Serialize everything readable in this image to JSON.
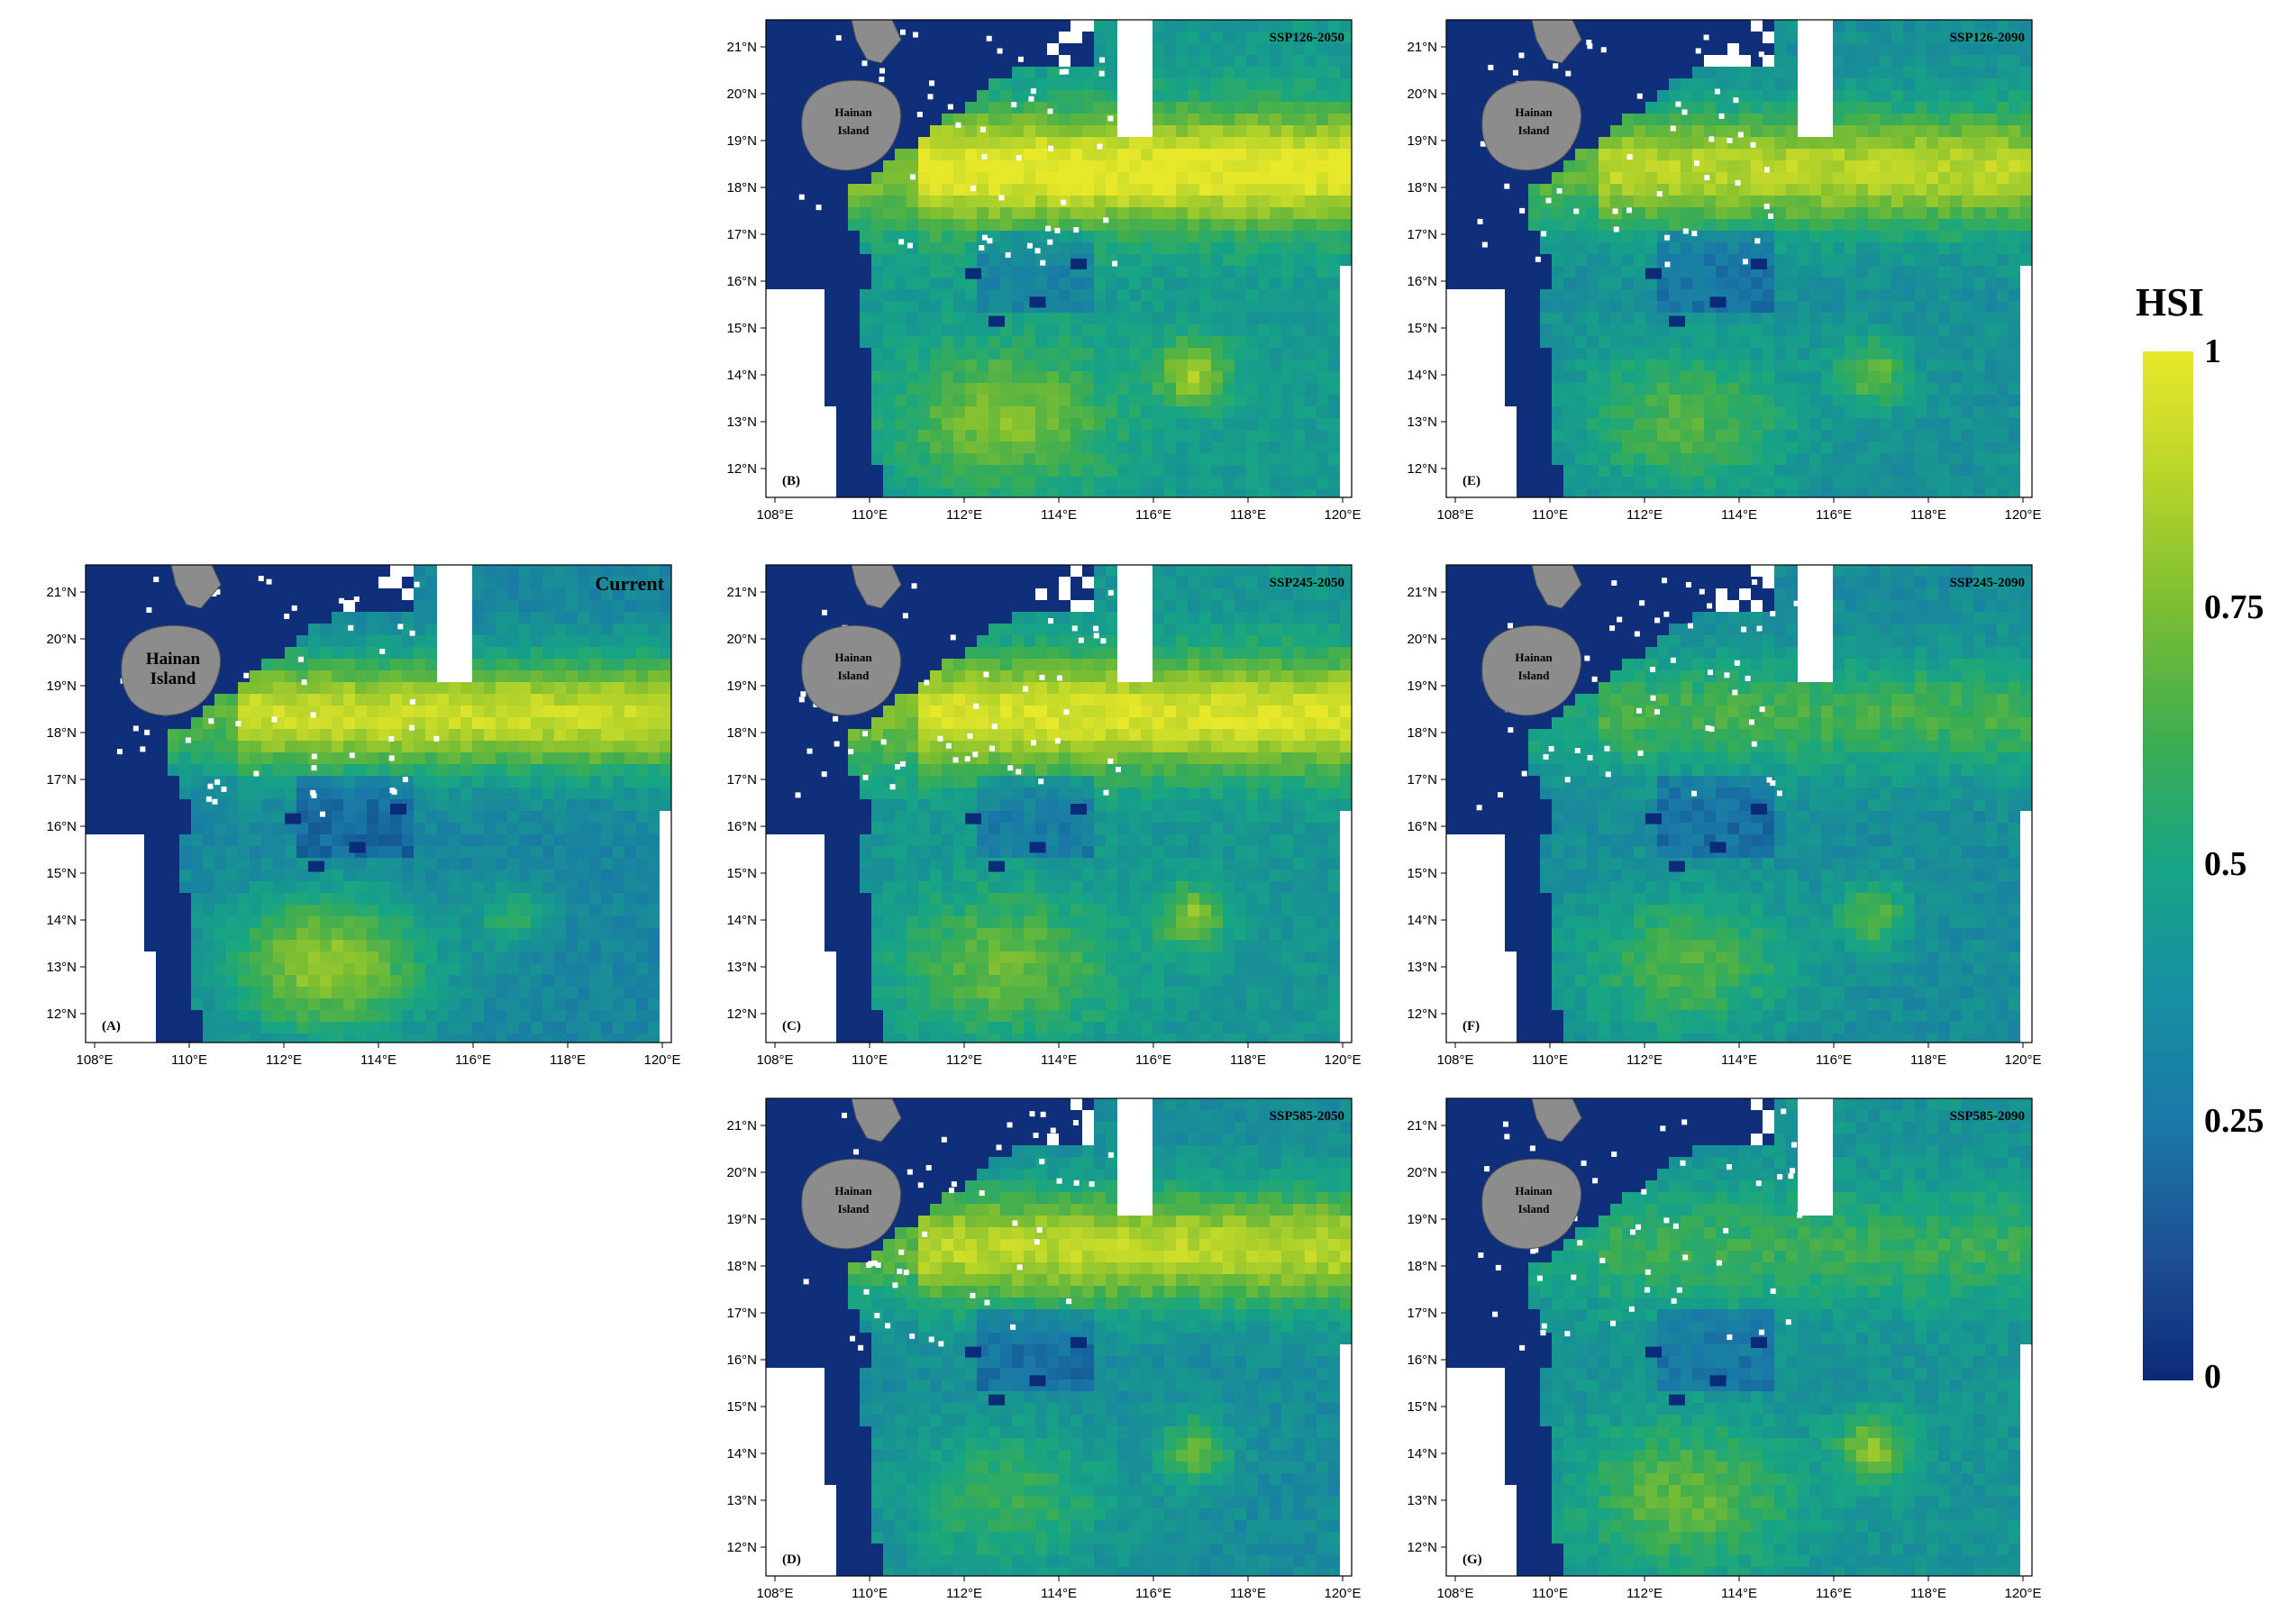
{
  "figure": {
    "panels": [
      {
        "id": "current",
        "tag": "(A)",
        "title": "Current",
        "pos": "left-middle"
      },
      {
        "id": "ssp126_2050",
        "tag": "(B)",
        "title": "SSP126-2050",
        "pos": "mid-top"
      },
      {
        "id": "ssp245_2050",
        "tag": "(C)",
        "title": "SSP245-2050",
        "pos": "mid-middle"
      },
      {
        "id": "ssp585_2050",
        "tag": "(D)",
        "title": "SSP585-2050",
        "pos": "mid-bottom"
      },
      {
        "id": "ssp126_2090",
        "tag": "(E)",
        "title": "SSP126-2090",
        "pos": "right-top"
      },
      {
        "id": "ssp245_2090",
        "tag": "(F)",
        "title": "SSP245-2090",
        "pos": "right-middle"
      },
      {
        "id": "ssp585_2090",
        "tag": "(G)",
        "title": "SSP585-2090",
        "pos": "right-bottom"
      }
    ],
    "island_label_line1": "Hainan",
    "island_label_line2": "Island",
    "lon_ticks": [
      "108°E",
      "110°E",
      "112°E",
      "114°E",
      "116°E",
      "118°E",
      "120°E"
    ],
    "lat_ticks": [
      "21°N",
      "20°N",
      "19°N",
      "18°N",
      "17°N",
      "16°N",
      "15°N",
      "14°N",
      "13°N",
      "12°N"
    ]
  },
  "legend": {
    "title": "HSI",
    "ticks": [
      "1",
      "0.75",
      "0.5",
      "0.25",
      "0"
    ],
    "colors": {
      "high": "#e8e82a",
      "mid_high": "#7bbd33",
      "mid": "#17a585",
      "mid_low": "#1a78a8",
      "low": "#0b2a78"
    }
  },
  "colors": {
    "land": "#8c8c8c",
    "deep_ocean": "#0f2f7a",
    "nodata": "#ffffff"
  }
}
